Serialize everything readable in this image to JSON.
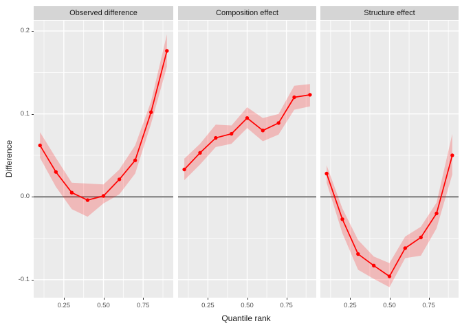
{
  "figure": {
    "xlabel": "Quantile rank",
    "ylabel": "Difference"
  },
  "axes": {
    "x_ticks": [
      0.25,
      0.5,
      0.75
    ],
    "x_tick_labels": [
      "0.25",
      "0.50",
      "0.75"
    ],
    "x_minor_ticks": [
      0.125,
      0.375,
      0.625,
      0.875
    ],
    "y_ticks": [
      0.2,
      0.1,
      0.0,
      -0.1
    ],
    "y_tick_labels": [
      "0.2",
      "0.1",
      "0.0",
      "-0.1"
    ],
    "y_minor_ticks": [
      0.15,
      0.05,
      -0.05
    ],
    "x_domain": [
      0.06,
      0.94
    ],
    "y_domain": [
      -0.1217,
      0.2125
    ],
    "grid": "on",
    "reference_line_y": 0
  },
  "chart_data": [
    {
      "type": "line",
      "title": "Observed difference",
      "xlabel": "Quantile rank",
      "ylabel": "Difference",
      "x": [
        0.1,
        0.2,
        0.3,
        0.4,
        0.5,
        0.6,
        0.7,
        0.8,
        0.9
      ],
      "values": [
        0.062,
        0.03,
        0.005,
        -0.004,
        0.001,
        0.021,
        0.044,
        0.102,
        0.176
      ],
      "ribbon_lower": [
        0.047,
        0.012,
        -0.015,
        -0.024,
        -0.008,
        0.003,
        0.028,
        0.088,
        0.157
      ],
      "ribbon_upper": [
        0.078,
        0.047,
        0.017,
        0.016,
        0.015,
        0.033,
        0.062,
        0.115,
        0.196
      ],
      "xlim": [
        0.06,
        0.94
      ],
      "ylim": [
        -0.1217,
        0.2125
      ]
    },
    {
      "type": "line",
      "title": "Composition effect",
      "xlabel": "Quantile rank",
      "ylabel": "Difference",
      "x": [
        0.1,
        0.2,
        0.3,
        0.4,
        0.5,
        0.6,
        0.7,
        0.8,
        0.9
      ],
      "values": [
        0.033,
        0.053,
        0.071,
        0.076,
        0.095,
        0.08,
        0.089,
        0.12,
        0.123
      ],
      "ribbon_lower": [
        0.02,
        0.039,
        0.06,
        0.064,
        0.083,
        0.067,
        0.075,
        0.105,
        0.109
      ],
      "ribbon_upper": [
        0.046,
        0.064,
        0.087,
        0.086,
        0.108,
        0.095,
        0.1,
        0.134,
        0.136
      ],
      "xlim": [
        0.06,
        0.94
      ],
      "ylim": [
        -0.1217,
        0.2125
      ]
    },
    {
      "type": "line",
      "title": "Structure effect",
      "xlabel": "Quantile rank",
      "ylabel": "Difference",
      "x": [
        0.1,
        0.2,
        0.3,
        0.4,
        0.5,
        0.6,
        0.7,
        0.8,
        0.9
      ],
      "values": [
        0.028,
        -0.027,
        -0.069,
        -0.083,
        -0.096,
        -0.062,
        -0.049,
        -0.02,
        0.05
      ],
      "ribbon_lower": [
        0.017,
        -0.044,
        -0.088,
        -0.099,
        -0.109,
        -0.074,
        -0.071,
        -0.038,
        0.027
      ],
      "ribbon_upper": [
        0.038,
        -0.014,
        -0.052,
        -0.072,
        -0.08,
        -0.048,
        -0.036,
        -0.007,
        0.076
      ],
      "xlim": [
        0.06,
        0.94
      ],
      "ylim": [
        -0.1217,
        0.2125
      ]
    }
  ],
  "colors": {
    "line": "#ff0000",
    "point": "#ff0000",
    "ribbon": "rgba(255,0,0,0.21)",
    "panel_background": "#ebebeb",
    "strip_background": "#d5d5d5",
    "gridline": "#ffffff",
    "zero_line": "#858585",
    "tick_text": "#4d4d4d",
    "axis_title_text": "#1a1a1a"
  }
}
